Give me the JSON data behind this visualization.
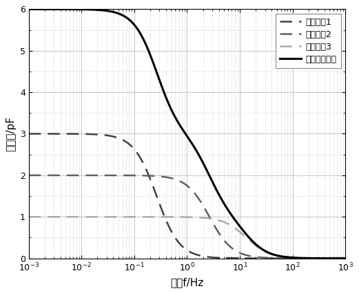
{
  "title": "",
  "xlabel": "频率f/Hz",
  "ylabel": "复电容/pF",
  "xlim_log": [
    -3,
    3
  ],
  "ylim": [
    0,
    6
  ],
  "yticks": [
    0,
    1,
    2,
    3,
    4,
    5,
    6
  ],
  "legend_labels": [
    "弛豫机构1",
    "弛豫机构2",
    "弛豫机构3",
    "叠加实部谱线"
  ],
  "debye_params": [
    {
      "delta_eps": 3.0,
      "tau": 0.6,
      "color": "#404040",
      "lw": 1.8
    },
    {
      "delta_eps": 2.0,
      "tau": 0.06,
      "color": "#606060",
      "lw": 1.8
    },
    {
      "delta_eps": 1.0,
      "tau": 0.012,
      "color": "#aaaaaa",
      "lw": 1.8
    }
  ],
  "sum_color": "#000000",
  "sum_lw": 2.2,
  "background_color": "#ffffff",
  "grid_major_color": "#bbbbbb",
  "grid_minor_color": "#dddddd",
  "tick_label_fontsize": 9,
  "axis_label_fontsize": 11,
  "legend_fontsize": 9,
  "dash_pattern": [
    7,
    4
  ]
}
